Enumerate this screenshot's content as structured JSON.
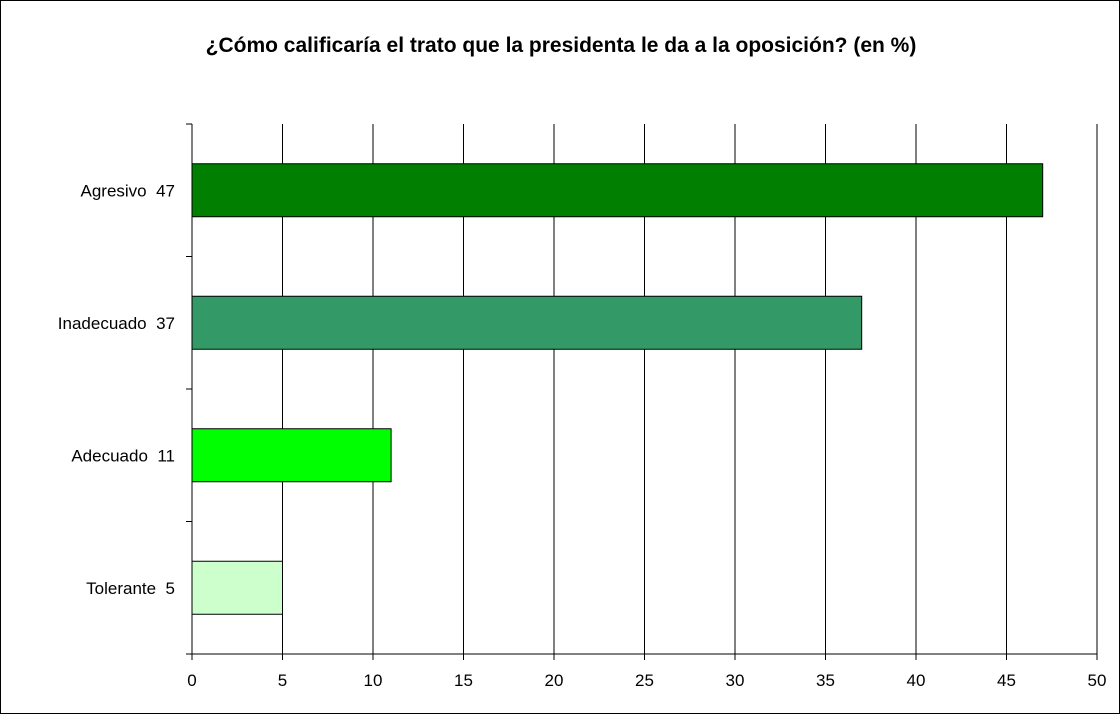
{
  "chart_data": {
    "type": "bar",
    "orientation": "horizontal",
    "title": "¿Cómo calificaría el trato que la presidenta le da a la oposición? (en %)",
    "categories": [
      "Agresivo  47",
      "Inadecuado  37",
      "Adecuado  11",
      "Tolerante  5"
    ],
    "values": [
      47,
      37,
      11,
      5
    ],
    "colors": [
      "#007f00",
      "#339966",
      "#00ff00",
      "#ccffcc"
    ],
    "xlim": [
      0,
      50
    ],
    "xticks": [
      0,
      5,
      10,
      15,
      20,
      25,
      30,
      35,
      40,
      45,
      50
    ],
    "xlabel": "",
    "ylabel": "",
    "grid": "vertical",
    "legend": "none"
  }
}
